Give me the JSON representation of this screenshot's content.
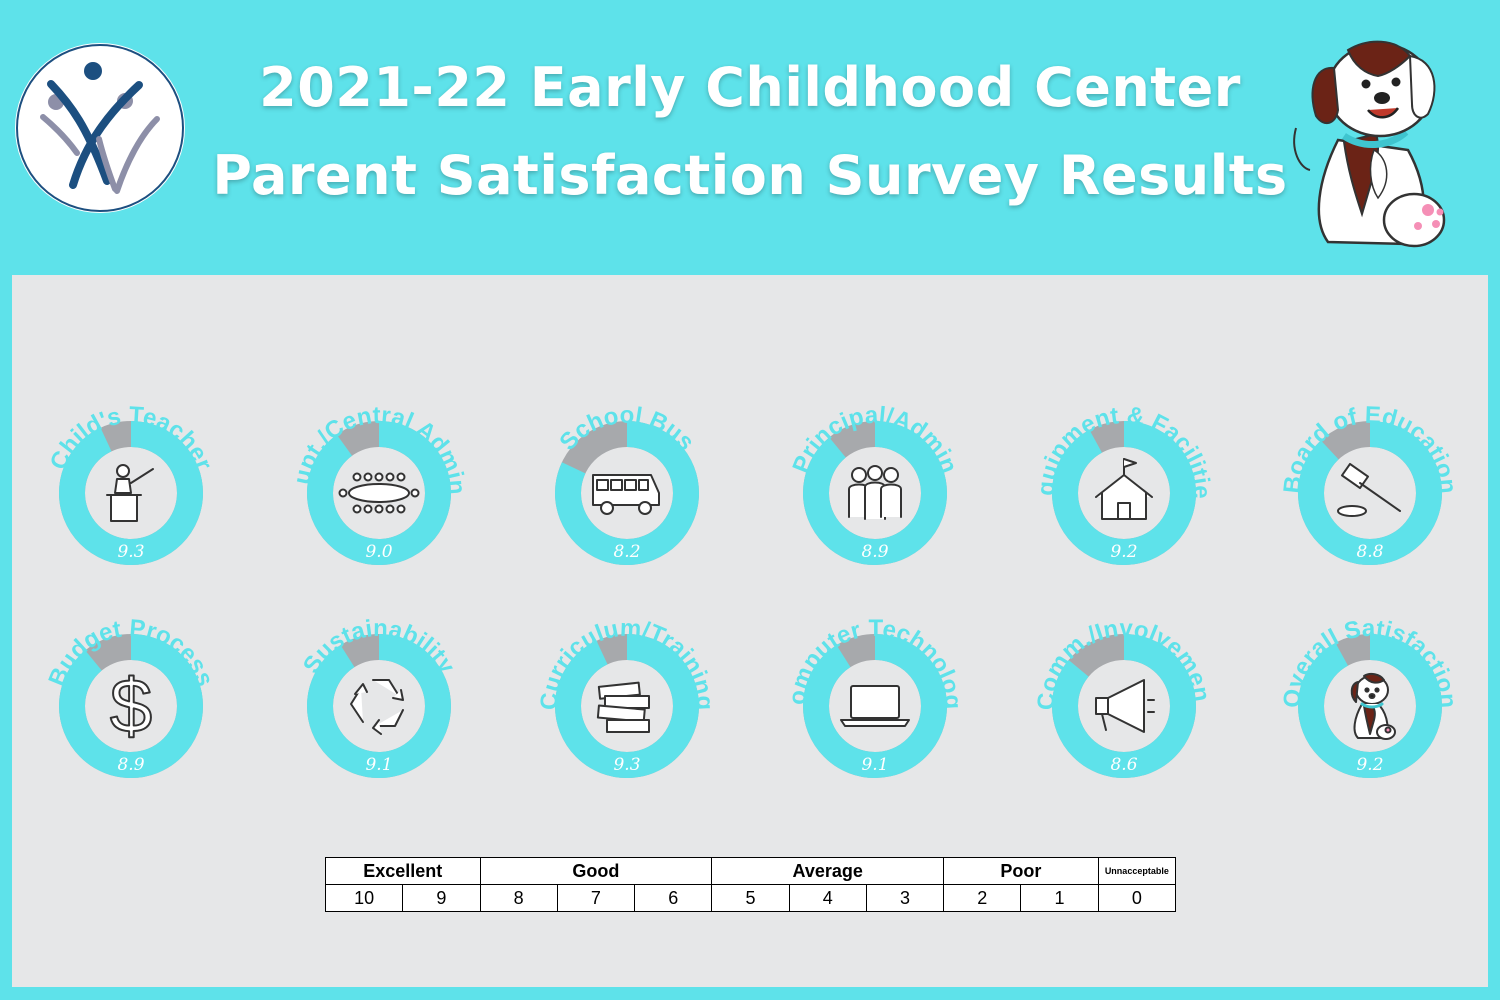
{
  "header": {
    "title_line1": "2021-22 Early Childhood Center",
    "title_line2": "Parent Satisfaction Survey Results"
  },
  "colors": {
    "background": "#5ee2ea",
    "panel": "#e6e7e8",
    "donut_fill": "#5ee2ea",
    "donut_remainder": "#a7a9ac",
    "title_text": "#ffffff"
  },
  "chart_data": {
    "type": "donut",
    "scale_max": 10,
    "categories": [
      {
        "label": "Child's Teacher",
        "value": 9.3,
        "icon": "teacher-icon"
      },
      {
        "label": "Supt./Central Admin.",
        "value": 9.0,
        "icon": "conference-table-icon"
      },
      {
        "label": "School Bus",
        "value": 8.2,
        "icon": "bus-icon"
      },
      {
        "label": "Principal/Admin",
        "value": 8.9,
        "icon": "people-icon"
      },
      {
        "label": "Equipment & Facilities",
        "value": 9.2,
        "icon": "schoolhouse-icon"
      },
      {
        "label": "Board of Education",
        "value": 8.8,
        "icon": "gavel-icon"
      },
      {
        "label": "Budget Process",
        "value": 8.9,
        "icon": "dollar-icon"
      },
      {
        "label": "Sustainability",
        "value": 9.1,
        "icon": "recycle-icon"
      },
      {
        "label": "Curriculum/Training",
        "value": 9.3,
        "icon": "books-icon"
      },
      {
        "label": "Computer Technology",
        "value": 9.1,
        "icon": "laptop-icon"
      },
      {
        "label": "Comm./Involvement",
        "value": 8.6,
        "icon": "megaphone-icon"
      },
      {
        "label": "Overall Satisfaction",
        "value": 9.2,
        "icon": "dog-icon"
      }
    ]
  },
  "rating_scale": {
    "groups": [
      {
        "label": "Excellent",
        "span": 2
      },
      {
        "label": "Good",
        "span": 3
      },
      {
        "label": "Average",
        "span": 3
      },
      {
        "label": "Poor",
        "span": 2
      },
      {
        "label": "Unnacceptable",
        "span": 1
      }
    ],
    "scores": [
      "10",
      "9",
      "8",
      "7",
      "6",
      "5",
      "4",
      "3",
      "2",
      "1",
      "0"
    ]
  }
}
